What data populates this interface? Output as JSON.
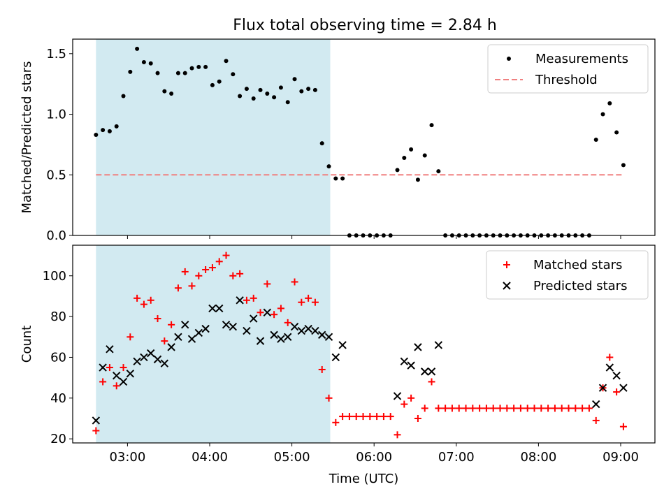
{
  "chart_data": {
    "title": "Flux total observing time = 2.84 h",
    "xlabel": "Time (UTC)",
    "x_ticks": [
      "03:00",
      "04:00",
      "05:00",
      "06:00",
      "07:00",
      "08:00",
      "09:00"
    ],
    "x_range": [
      "02:20",
      "09:25"
    ],
    "shaded_interval": [
      "02:37",
      "05:28"
    ],
    "colors": {
      "shade": "#add8e6",
      "threshold": "#f08080",
      "measurements": "#000000",
      "matched": "#ff0000",
      "predicted": "#000000"
    },
    "panels": [
      {
        "type": "scatter",
        "ylabel": "Matched/Predicted stars",
        "ylim": [
          0,
          1.62
        ],
        "y_ticks": [
          "0.0",
          "0.5",
          "1.0",
          "1.5"
        ],
        "legend_position": "top-right",
        "series": [
          {
            "name": "Measurements",
            "marker": "dot",
            "x": [
              "02:37",
              "02:42",
              "02:47",
              "02:52",
              "02:57",
              "03:02",
              "03:07",
              "03:12",
              "03:17",
              "03:22",
              "03:27",
              "03:32",
              "03:37",
              "03:42",
              "03:47",
              "03:52",
              "03:57",
              "04:02",
              "04:07",
              "04:12",
              "04:17",
              "04:22",
              "04:27",
              "04:32",
              "04:37",
              "04:42",
              "04:47",
              "04:52",
              "04:57",
              "05:02",
              "05:07",
              "05:12",
              "05:17",
              "05:22",
              "05:27",
              "05:32",
              "05:37",
              "05:42",
              "05:47",
              "05:52",
              "05:57",
              "06:02",
              "06:07",
              "06:12",
              "06:17",
              "06:22",
              "06:27",
              "06:32",
              "06:37",
              "06:42",
              "06:47",
              "06:52",
              "06:57",
              "07:02",
              "07:07",
              "07:12",
              "07:17",
              "07:22",
              "07:27",
              "07:32",
              "07:37",
              "07:42",
              "07:47",
              "07:52",
              "07:57",
              "08:02",
              "08:07",
              "08:12",
              "08:17",
              "08:22",
              "08:27",
              "08:32",
              "08:37",
              "08:42",
              "08:47",
              "08:52",
              "08:57",
              "09:02"
            ],
            "y": [
              0.83,
              0.87,
              0.86,
              0.9,
              1.15,
              1.35,
              1.54,
              1.43,
              1.42,
              1.34,
              1.19,
              1.17,
              1.34,
              1.34,
              1.38,
              1.39,
              1.39,
              1.24,
              1.27,
              1.44,
              1.33,
              1.15,
              1.21,
              1.13,
              1.2,
              1.17,
              1.14,
              1.22,
              1.1,
              1.29,
              1.19,
              1.21,
              1.2,
              0.76,
              0.57,
              0.47,
              0.47,
              0,
              0,
              0,
              0,
              0,
              0,
              0,
              0.54,
              0.64,
              0.71,
              0.46,
              0.66,
              0.91,
              0.53,
              0,
              0,
              0,
              0,
              0,
              0,
              0,
              0,
              0,
              0,
              0,
              0,
              0,
              0,
              0,
              0,
              0,
              0,
              0,
              0,
              0,
              0,
              0.79,
              1.0,
              1.09,
              0.85,
              0.58
            ]
          }
        ],
        "threshold": {
          "name": "Threshold",
          "value": 0.5,
          "style": "dashed",
          "x_range": [
            "02:37",
            "09:02"
          ]
        }
      },
      {
        "type": "scatter",
        "ylabel": "Count",
        "ylim": [
          18,
          115
        ],
        "y_ticks": [
          "20",
          "40",
          "60",
          "80",
          "100"
        ],
        "legend_position": "top-right",
        "series": [
          {
            "name": "Matched stars",
            "marker": "plus",
            "x": [
              "02:37",
              "02:42",
              "02:47",
              "02:52",
              "02:57",
              "03:02",
              "03:07",
              "03:12",
              "03:17",
              "03:22",
              "03:27",
              "03:32",
              "03:37",
              "03:42",
              "03:47",
              "03:52",
              "03:57",
              "04:02",
              "04:07",
              "04:12",
              "04:17",
              "04:22",
              "04:27",
              "04:32",
              "04:37",
              "04:42",
              "04:47",
              "04:52",
              "04:57",
              "05:02",
              "05:07",
              "05:12",
              "05:17",
              "05:22",
              "05:27",
              "05:32",
              "05:37",
              "05:42",
              "05:47",
              "05:52",
              "05:57",
              "06:02",
              "06:07",
              "06:12",
              "06:17",
              "06:22",
              "06:27",
              "06:32",
              "06:37",
              "06:42",
              "06:47",
              "06:52",
              "06:57",
              "07:02",
              "07:07",
              "07:12",
              "07:17",
              "07:22",
              "07:27",
              "07:32",
              "07:37",
              "07:42",
              "07:47",
              "07:52",
              "07:57",
              "08:02",
              "08:07",
              "08:12",
              "08:17",
              "08:22",
              "08:27",
              "08:32",
              "08:37",
              "08:42",
              "08:47",
              "08:52",
              "08:57",
              "09:02"
            ],
            "y": [
              24,
              48,
              55,
              46,
              55,
              70,
              89,
              86,
              88,
              79,
              68,
              76,
              94,
              102,
              95,
              100,
              103,
              104,
              107,
              110,
              100,
              101,
              88,
              89,
              82,
              96,
              81,
              84,
              77,
              97,
              87,
              89,
              87,
              54,
              40,
              28,
              31,
              31,
              31,
              31,
              31,
              31,
              31,
              31,
              22,
              37,
              40,
              30,
              35,
              48,
              35,
              35,
              35,
              35,
              35,
              35,
              35,
              35,
              35,
              35,
              35,
              35,
              35,
              35,
              35,
              35,
              35,
              35,
              35,
              35,
              35,
              35,
              35,
              29,
              45,
              60,
              43,
              26
            ]
          },
          {
            "name": "Predicted stars",
            "marker": "x",
            "x": [
              "02:37",
              "02:42",
              "02:47",
              "02:52",
              "02:57",
              "03:02",
              "03:07",
              "03:12",
              "03:17",
              "03:22",
              "03:27",
              "03:32",
              "03:37",
              "03:42",
              "03:47",
              "03:52",
              "03:57",
              "04:02",
              "04:07",
              "04:12",
              "04:17",
              "04:22",
              "04:27",
              "04:32",
              "04:37",
              "04:42",
              "04:47",
              "04:52",
              "04:57",
              "05:02",
              "05:07",
              "05:12",
              "05:17",
              "05:22",
              "05:27",
              "05:32",
              "05:37",
              "06:17",
              "06:22",
              "06:27",
              "06:32",
              "06:37",
              "06:42",
              "06:47",
              "08:42",
              "08:47",
              "08:52",
              "08:57",
              "09:02"
            ],
            "y": [
              29,
              55,
              64,
              51,
              48,
              52,
              58,
              60,
              62,
              59,
              57,
              65,
              70,
              76,
              69,
              72,
              74,
              84,
              84,
              76,
              75,
              88,
              73,
              79,
              68,
              82,
              71,
              69,
              70,
              75,
              73,
              74,
              73,
              71,
              70,
              60,
              66,
              41,
              58,
              56,
              65,
              53,
              53,
              66,
              37,
              45,
              55,
              51,
              45
            ]
          }
        ]
      }
    ]
  }
}
